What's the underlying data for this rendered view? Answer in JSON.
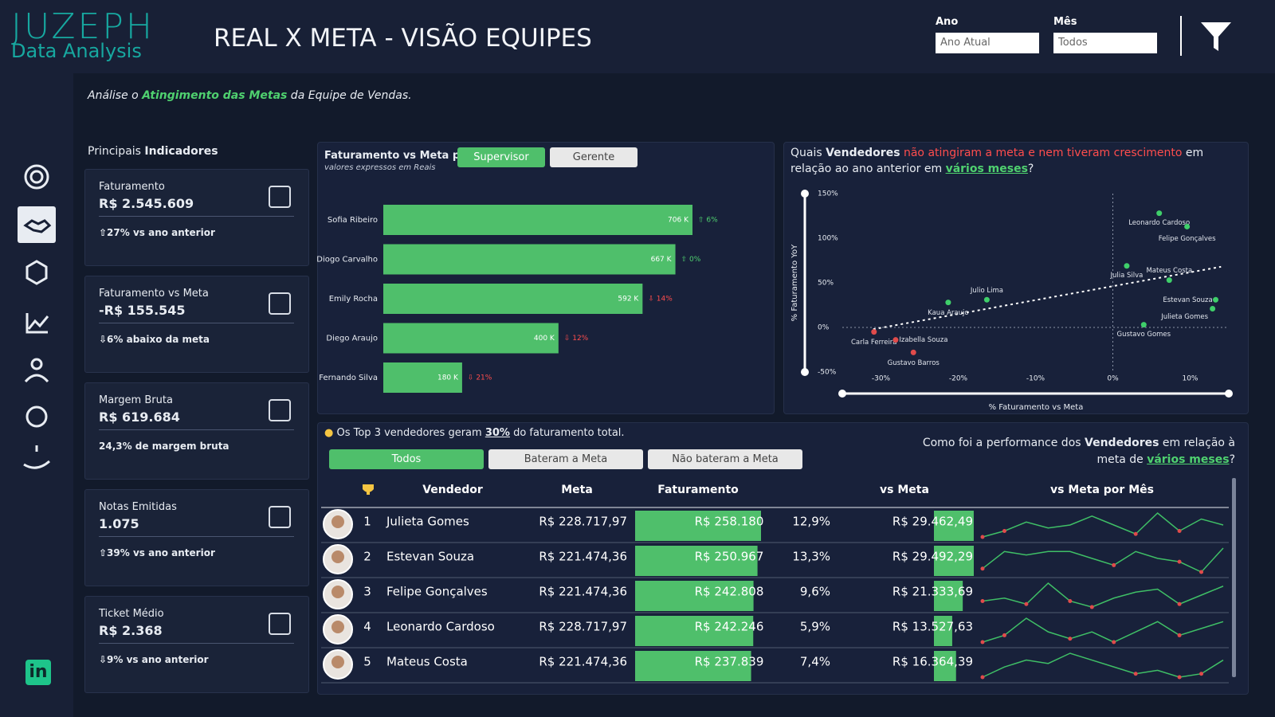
{
  "header": {
    "logo_top": "JUZEPH",
    "logo_bottom": "Data Analysis",
    "title": "REAL X META - VISÃO EQUIPES",
    "filters": [
      {
        "label": "Ano",
        "value": "Ano Atual"
      },
      {
        "label": "Mês",
        "value": "Todos"
      }
    ]
  },
  "subtitle": [
    "Análise o ",
    "Atingimento das Metas",
    " da Equipe de Vendas."
  ],
  "kpi_heading": [
    "Principais ",
    "Indicadores"
  ],
  "kpis": [
    {
      "title": "Faturamento",
      "value": "R$ 2.545.609",
      "note": "⇧27% vs ano anterior"
    },
    {
      "title": "Faturamento vs Meta",
      "value": "-R$ 155.545",
      "note": "⇩6% abaixo da meta"
    },
    {
      "title": "Margem Bruta",
      "value": "R$ 619.684",
      "note": "24,3% de margem bruta"
    },
    {
      "title": "Notas Emitidas",
      "value": "1.075",
      "note": "⇧39% vs ano anterior"
    },
    {
      "title": "Ticket Médio",
      "value": "R$ 2.368",
      "note": "⇩9% vs ano anterior"
    }
  ],
  "bar_chart": {
    "type": "bar",
    "title": "Faturamento vs Meta por",
    "subtitle": "valores expressos em Reais",
    "toggles": [
      "Supervisor",
      "Gerente"
    ],
    "categories": [
      "Sofia Ribeiro",
      "Diogo Carvalho",
      "Emily Rocha",
      "Diego Araujo",
      "Fernando Silva"
    ],
    "values": [
      706,
      667,
      592,
      400,
      180
    ],
    "value_labels": [
      "706 K",
      "667 K",
      "592 K",
      "400 K",
      "180 K"
    ],
    "deltas": [
      "⇧ 6%",
      "⇧ 0%",
      "⇩ 14%",
      "⇩ 12%",
      "⇩ 21%"
    ],
    "delta_colors": [
      "#4fd16f",
      "#4fd16f",
      "#ff4d4d",
      "#ff4d4d",
      "#ff4d4d"
    ],
    "color": "#4fbf6b"
  },
  "scatter_chart": {
    "type": "scatter",
    "title": [
      "Quais ",
      "Vendedores",
      " não atingiram a meta e nem tiveram crescimento",
      " em relação ao ano anterior em ",
      "vários meses",
      "?"
    ],
    "xlabel": "% Faturamento vs Meta",
    "ylabel": "% Faturamento YoY",
    "xlim": [
      -35,
      15
    ],
    "ylim": [
      -50,
      150
    ],
    "xticks": [
      {
        "value": -30,
        "label": "-30%"
      },
      {
        "value": -20,
        "label": "-20%"
      },
      {
        "value": -10,
        "label": "-10%"
      },
      {
        "value": 0,
        "label": "0%"
      },
      {
        "value": 10,
        "label": "10%"
      }
    ],
    "yticks": [
      {
        "value": -50,
        "label": "-50%"
      },
      {
        "value": 0,
        "label": "0%"
      },
      {
        "value": 50,
        "label": "50%"
      },
      {
        "value": 100,
        "label": "100%"
      },
      {
        "value": 150,
        "label": "150%"
      }
    ],
    "names": [
      "Leonardo Cardoso",
      "Felipe Gonçalves",
      "Julia Silva",
      "Mateus Costa",
      "Estevan Souza",
      "Julieta Gomes",
      "Gustavo Gomes",
      "Julio Lima",
      "Kaua Araujo",
      "Carla Ferreira",
      "Izabella Souza",
      "Gustavo Barros"
    ],
    "x": [
      6.0,
      9.6,
      1.8,
      7.3,
      13.3,
      12.9,
      4.0,
      -16.3,
      -21.3,
      -30.9,
      -28.1,
      -25.8
    ],
    "y": [
      128,
      113,
      69,
      53,
      31,
      21,
      3,
      31,
      28,
      -5,
      -14,
      -28
    ],
    "colors": [
      "#3fcf6a",
      "#3fcf6a",
      "#3fcf6a",
      "#3fcf6a",
      "#3fcf6a",
      "#3fcf6a",
      "#3fcf6a",
      "#3fcf6a",
      "#3fcf6a",
      "#e04b4b",
      "#e04b4b",
      "#e04b4b"
    ]
  },
  "table_section": {
    "note": [
      "Os Top 3 vendedores geram ",
      "30%",
      " do faturamento total."
    ],
    "buttons": [
      "Todos",
      "Bateram a Meta",
      "Não bateram a Meta"
    ],
    "question": [
      "Como foi a performance dos ",
      "Vendedores",
      " em relação à meta de ",
      "vários meses",
      "?"
    ],
    "columns": [
      "Vendedor",
      "Meta",
      "Faturamento",
      "vs Meta",
      "vs Meta por Mês"
    ],
    "rows": [
      {
        "rank": 1,
        "name": "Julieta Gomes",
        "meta": "R$ 228.717,97",
        "faturamento": {
          "value": 258180,
          "label": "R$ 258.180"
        },
        "pct": "12,9%",
        "vs_meta": {
          "value": 29462.49,
          "label": "R$ 29.462,49"
        },
        "monthly": [
          2,
          4,
          7,
          5,
          6,
          9,
          6,
          3,
          10,
          4,
          8,
          6
        ]
      },
      {
        "rank": 2,
        "name": "Estevan Souza",
        "meta": "R$ 221.474,36",
        "faturamento": {
          "value": 250967,
          "label": "R$ 250.967"
        },
        "pct": "13,3%",
        "vs_meta": {
          "value": 29492.29,
          "label": "R$ 29.492,29"
        },
        "monthly": [
          3,
          8,
          7,
          8,
          8,
          6,
          4,
          8,
          6,
          5,
          2,
          9
        ]
      },
      {
        "rank": 3,
        "name": "Felipe Gonçalves",
        "meta": "R$ 221.474,36",
        "faturamento": {
          "value": 242808,
          "label": "R$ 242.808"
        },
        "pct": "9,6%",
        "vs_meta": {
          "value": 21333.69,
          "label": "R$ 21.333,69"
        },
        "monthly": [
          4,
          5,
          3,
          10,
          4,
          2,
          5,
          7,
          8,
          3,
          6,
          9
        ]
      },
      {
        "rank": 4,
        "name": "Leonardo Cardoso",
        "meta": "R$ 228.717,97",
        "faturamento": {
          "value": 242246,
          "label": "R$ 242.246"
        },
        "pct": "5,9%",
        "vs_meta": {
          "value": 13527.63,
          "label": "R$ 13.527,63"
        },
        "monthly": [
          3,
          5,
          10,
          6,
          4,
          6,
          3,
          6,
          9,
          5,
          7,
          9
        ]
      },
      {
        "rank": 5,
        "name": "Mateus Costa",
        "meta": "R$ 221.474,36",
        "faturamento": {
          "value": 237839,
          "label": "R$ 237.839"
        },
        "pct": "7,4%",
        "vs_meta": {
          "value": 16364.39,
          "label": "R$ 16.364,39"
        },
        "monthly": [
          2,
          5,
          7,
          6,
          9,
          7,
          5,
          3,
          4,
          2,
          3,
          7
        ]
      }
    ]
  }
}
